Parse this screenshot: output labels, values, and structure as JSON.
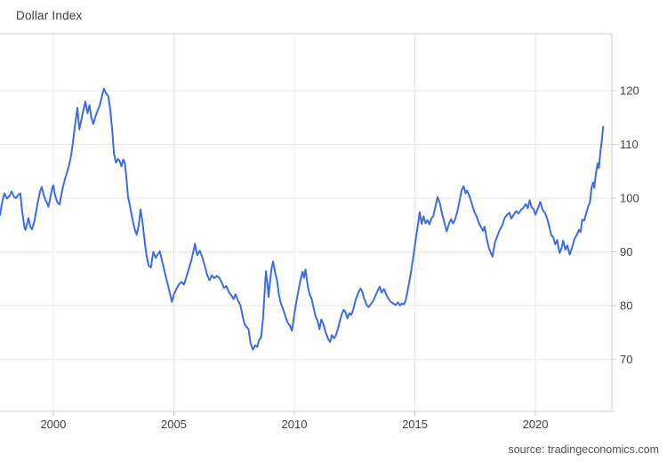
{
  "title": "Dollar Index",
  "source_credit": "source: tradingeconomics.com",
  "chart_data": {
    "type": "line",
    "title": "Dollar Index",
    "xlabel": "",
    "ylabel": "",
    "legend": "none",
    "grid": true,
    "colors": {
      "line": "#3d6ce4",
      "gridline": "#e8e8e8",
      "axis": "#cccccc",
      "tick_text": "#404040",
      "background": "#ffffff"
    },
    "x_ticks": [
      2000,
      2005,
      2010,
      2015,
      2020
    ],
    "y_ticks": [
      70,
      80,
      90,
      100,
      110,
      120
    ],
    "x_range": [
      1997.79,
      2023.17
    ],
    "y_range": [
      60.3,
      130.6
    ],
    "series": [
      {
        "name": "Dollar Index",
        "points": [
          [
            1997.79,
            96.8
          ],
          [
            1997.88,
            99.2
          ],
          [
            1997.97,
            100.9
          ],
          [
            1998.08,
            99.9
          ],
          [
            1998.18,
            100.4
          ],
          [
            1998.27,
            101.2
          ],
          [
            1998.38,
            100.2
          ],
          [
            1998.45,
            100.0
          ],
          [
            1998.55,
            100.6
          ],
          [
            1998.63,
            100.9
          ],
          [
            1998.7,
            97.9
          ],
          [
            1998.8,
            94.6
          ],
          [
            1998.85,
            94.1
          ],
          [
            1998.93,
            95.6
          ],
          [
            1998.97,
            96.3
          ],
          [
            1999.05,
            94.6
          ],
          [
            1999.12,
            94.2
          ],
          [
            1999.22,
            95.8
          ],
          [
            1999.34,
            98.8
          ],
          [
            1999.45,
            101.2
          ],
          [
            1999.52,
            102.1
          ],
          [
            1999.6,
            100.6
          ],
          [
            1999.68,
            99.6
          ],
          [
            1999.74,
            99.1
          ],
          [
            1999.8,
            98.4
          ],
          [
            1999.88,
            100.2
          ],
          [
            1999.95,
            101.8
          ],
          [
            2000.0,
            102.4
          ],
          [
            2000.08,
            100.4
          ],
          [
            2000.17,
            99.2
          ],
          [
            2000.26,
            98.8
          ],
          [
            2000.34,
            100.8
          ],
          [
            2000.42,
            102.4
          ],
          [
            2000.5,
            103.8
          ],
          [
            2000.57,
            104.8
          ],
          [
            2000.66,
            106.2
          ],
          [
            2000.74,
            108.0
          ],
          [
            2000.82,
            110.5
          ],
          [
            2000.9,
            113.5
          ],
          [
            2001.0,
            116.8
          ],
          [
            2001.08,
            112.8
          ],
          [
            2001.16,
            114.5
          ],
          [
            2001.24,
            116.2
          ],
          [
            2001.33,
            118.0
          ],
          [
            2001.42,
            115.8
          ],
          [
            2001.5,
            117.3
          ],
          [
            2001.58,
            115.0
          ],
          [
            2001.66,
            113.8
          ],
          [
            2001.75,
            115.2
          ],
          [
            2001.83,
            116.2
          ],
          [
            2001.92,
            117.2
          ],
          [
            2002.0,
            118.6
          ],
          [
            2002.1,
            120.4
          ],
          [
            2002.18,
            119.6
          ],
          [
            2002.28,
            119.0
          ],
          [
            2002.36,
            116.5
          ],
          [
            2002.44,
            112.8
          ],
          [
            2002.52,
            108.2
          ],
          [
            2002.6,
            106.6
          ],
          [
            2002.68,
            107.3
          ],
          [
            2002.76,
            106.9
          ],
          [
            2002.83,
            105.9
          ],
          [
            2002.9,
            107.2
          ],
          [
            2002.97,
            106.5
          ],
          [
            2003.03,
            104.0
          ],
          [
            2003.1,
            100.3
          ],
          [
            2003.18,
            98.6
          ],
          [
            2003.28,
            96.2
          ],
          [
            2003.38,
            94.2
          ],
          [
            2003.46,
            93.2
          ],
          [
            2003.54,
            94.8
          ],
          [
            2003.62,
            97.9
          ],
          [
            2003.7,
            95.6
          ],
          [
            2003.8,
            91.6
          ],
          [
            2003.88,
            89.0
          ],
          [
            2003.96,
            87.4
          ],
          [
            2004.05,
            87.1
          ],
          [
            2004.15,
            90.0
          ],
          [
            2004.25,
            88.9
          ],
          [
            2004.33,
            89.5
          ],
          [
            2004.42,
            90.1
          ],
          [
            2004.52,
            88.2
          ],
          [
            2004.62,
            86.3
          ],
          [
            2004.72,
            84.4
          ],
          [
            2004.82,
            82.6
          ],
          [
            2004.92,
            80.7
          ],
          [
            2005.02,
            82.3
          ],
          [
            2005.12,
            83.2
          ],
          [
            2005.22,
            84.0
          ],
          [
            2005.32,
            84.4
          ],
          [
            2005.42,
            83.9
          ],
          [
            2005.52,
            85.3
          ],
          [
            2005.62,
            86.8
          ],
          [
            2005.72,
            88.3
          ],
          [
            2005.82,
            90.3
          ],
          [
            2005.88,
            91.5
          ],
          [
            2005.97,
            89.4
          ],
          [
            2006.08,
            90.2
          ],
          [
            2006.18,
            89.0
          ],
          [
            2006.28,
            87.5
          ],
          [
            2006.38,
            85.7
          ],
          [
            2006.48,
            84.7
          ],
          [
            2006.58,
            85.6
          ],
          [
            2006.68,
            85.1
          ],
          [
            2006.78,
            85.5
          ],
          [
            2006.88,
            85.2
          ],
          [
            2006.98,
            84.4
          ],
          [
            2007.08,
            83.3
          ],
          [
            2007.18,
            83.6
          ],
          [
            2007.28,
            82.5
          ],
          [
            2007.38,
            81.9
          ],
          [
            2007.48,
            81.2
          ],
          [
            2007.56,
            82.1
          ],
          [
            2007.66,
            80.9
          ],
          [
            2007.76,
            80.1
          ],
          [
            2007.86,
            77.9
          ],
          [
            2007.94,
            76.5
          ],
          [
            2008.02,
            76.0
          ],
          [
            2008.1,
            75.6
          ],
          [
            2008.18,
            73.0
          ],
          [
            2008.28,
            71.8
          ],
          [
            2008.38,
            72.6
          ],
          [
            2008.46,
            72.3
          ],
          [
            2008.54,
            73.6
          ],
          [
            2008.62,
            74.1
          ],
          [
            2008.7,
            77.5
          ],
          [
            2008.76,
            82.0
          ],
          [
            2008.82,
            86.4
          ],
          [
            2008.88,
            84.3
          ],
          [
            2008.93,
            81.6
          ],
          [
            2009.0,
            84.9
          ],
          [
            2009.06,
            87.0
          ],
          [
            2009.12,
            88.2
          ],
          [
            2009.2,
            86.2
          ],
          [
            2009.28,
            84.7
          ],
          [
            2009.36,
            82.0
          ],
          [
            2009.44,
            80.4
          ],
          [
            2009.52,
            79.5
          ],
          [
            2009.62,
            78.1
          ],
          [
            2009.72,
            76.8
          ],
          [
            2009.82,
            76.2
          ],
          [
            2009.9,
            75.3
          ],
          [
            2009.98,
            77.7
          ],
          [
            2010.06,
            80.1
          ],
          [
            2010.16,
            82.5
          ],
          [
            2010.24,
            84.5
          ],
          [
            2010.34,
            86.3
          ],
          [
            2010.4,
            85.2
          ],
          [
            2010.46,
            86.7
          ],
          [
            2010.56,
            83.5
          ],
          [
            2010.64,
            82.0
          ],
          [
            2010.72,
            81.2
          ],
          [
            2010.8,
            79.5
          ],
          [
            2010.88,
            78.0
          ],
          [
            2010.96,
            77.2
          ],
          [
            2011.04,
            75.6
          ],
          [
            2011.12,
            77.4
          ],
          [
            2011.2,
            76.6
          ],
          [
            2011.3,
            75.0
          ],
          [
            2011.4,
            73.8
          ],
          [
            2011.48,
            73.2
          ],
          [
            2011.56,
            74.5
          ],
          [
            2011.64,
            73.9
          ],
          [
            2011.72,
            74.4
          ],
          [
            2011.8,
            75.6
          ],
          [
            2011.88,
            77.0
          ],
          [
            2011.96,
            78.3
          ],
          [
            2012.04,
            79.2
          ],
          [
            2012.12,
            78.8
          ],
          [
            2012.2,
            77.6
          ],
          [
            2012.28,
            78.6
          ],
          [
            2012.36,
            78.3
          ],
          [
            2012.44,
            79.2
          ],
          [
            2012.54,
            81.0
          ],
          [
            2012.64,
            82.3
          ],
          [
            2012.74,
            83.2
          ],
          [
            2012.82,
            82.6
          ],
          [
            2012.9,
            81.2
          ],
          [
            2013.0,
            80.1
          ],
          [
            2013.08,
            79.7
          ],
          [
            2013.16,
            80.2
          ],
          [
            2013.26,
            80.8
          ],
          [
            2013.36,
            81.8
          ],
          [
            2013.46,
            82.8
          ],
          [
            2013.54,
            83.5
          ],
          [
            2013.62,
            82.4
          ],
          [
            2013.72,
            83.1
          ],
          [
            2013.82,
            82.0
          ],
          [
            2013.9,
            81.3
          ],
          [
            2014.0,
            80.7
          ],
          [
            2014.1,
            80.4
          ],
          [
            2014.2,
            80.1
          ],
          [
            2014.3,
            80.6
          ],
          [
            2014.38,
            80.0
          ],
          [
            2014.46,
            80.4
          ],
          [
            2014.54,
            80.2
          ],
          [
            2014.62,
            81.0
          ],
          [
            2014.7,
            82.8
          ],
          [
            2014.8,
            85.2
          ],
          [
            2014.88,
            87.5
          ],
          [
            2014.96,
            89.8
          ],
          [
            2015.04,
            92.5
          ],
          [
            2015.12,
            94.9
          ],
          [
            2015.2,
            97.4
          ],
          [
            2015.28,
            95.2
          ],
          [
            2015.36,
            96.6
          ],
          [
            2015.44,
            95.3
          ],
          [
            2015.52,
            95.9
          ],
          [
            2015.6,
            95.1
          ],
          [
            2015.68,
            96.2
          ],
          [
            2015.76,
            96.6
          ],
          [
            2015.84,
            98.2
          ],
          [
            2015.94,
            100.2
          ],
          [
            2016.04,
            99.0
          ],
          [
            2016.12,
            97.2
          ],
          [
            2016.22,
            95.5
          ],
          [
            2016.32,
            93.8
          ],
          [
            2016.42,
            95.3
          ],
          [
            2016.5,
            96.1
          ],
          [
            2016.58,
            95.3
          ],
          [
            2016.66,
            95.9
          ],
          [
            2016.76,
            97.5
          ],
          [
            2016.86,
            99.6
          ],
          [
            2016.94,
            101.5
          ],
          [
            2017.02,
            102.2
          ],
          [
            2017.1,
            100.9
          ],
          [
            2017.16,
            101.4
          ],
          [
            2017.26,
            100.4
          ],
          [
            2017.36,
            99.0
          ],
          [
            2017.46,
            97.5
          ],
          [
            2017.56,
            96.6
          ],
          [
            2017.66,
            95.3
          ],
          [
            2017.76,
            94.5
          ],
          [
            2017.83,
            93.9
          ],
          [
            2017.89,
            94.7
          ],
          [
            2017.96,
            92.9
          ],
          [
            2018.06,
            90.8
          ],
          [
            2018.14,
            89.9
          ],
          [
            2018.22,
            89.1
          ],
          [
            2018.32,
            91.8
          ],
          [
            2018.42,
            92.9
          ],
          [
            2018.52,
            94.1
          ],
          [
            2018.62,
            94.9
          ],
          [
            2018.72,
            96.3
          ],
          [
            2018.82,
            96.9
          ],
          [
            2018.92,
            97.3
          ],
          [
            2019.0,
            96.2
          ],
          [
            2019.1,
            96.9
          ],
          [
            2019.2,
            97.6
          ],
          [
            2019.3,
            97.1
          ],
          [
            2019.4,
            97.8
          ],
          [
            2019.5,
            98.2
          ],
          [
            2019.6,
            98.9
          ],
          [
            2019.68,
            98.1
          ],
          [
            2019.76,
            99.6
          ],
          [
            2019.84,
            98.3
          ],
          [
            2019.92,
            98.0
          ],
          [
            2020.0,
            96.9
          ],
          [
            2020.1,
            98.1
          ],
          [
            2020.2,
            99.3
          ],
          [
            2020.3,
            97.8
          ],
          [
            2020.4,
            97.2
          ],
          [
            2020.5,
            96.0
          ],
          [
            2020.58,
            94.5
          ],
          [
            2020.66,
            93.1
          ],
          [
            2020.74,
            92.7
          ],
          [
            2020.82,
            91.4
          ],
          [
            2020.9,
            92.2
          ],
          [
            2021.0,
            89.8
          ],
          [
            2021.08,
            90.6
          ],
          [
            2021.15,
            92.1
          ],
          [
            2021.24,
            90.4
          ],
          [
            2021.32,
            91.2
          ],
          [
            2021.42,
            89.5
          ],
          [
            2021.52,
            90.8
          ],
          [
            2021.62,
            92.4
          ],
          [
            2021.72,
            93.2
          ],
          [
            2021.8,
            94.1
          ],
          [
            2021.87,
            93.7
          ],
          [
            2021.94,
            96.0
          ],
          [
            2022.02,
            95.8
          ],
          [
            2022.1,
            97.0
          ],
          [
            2022.18,
            98.4
          ],
          [
            2022.26,
            99.2
          ],
          [
            2022.33,
            102.0
          ],
          [
            2022.39,
            102.9
          ],
          [
            2022.44,
            101.9
          ],
          [
            2022.51,
            104.6
          ],
          [
            2022.58,
            106.5
          ],
          [
            2022.63,
            105.6
          ],
          [
            2022.7,
            108.9
          ],
          [
            2022.76,
            111.0
          ],
          [
            2022.81,
            113.3
          ]
        ]
      }
    ]
  }
}
